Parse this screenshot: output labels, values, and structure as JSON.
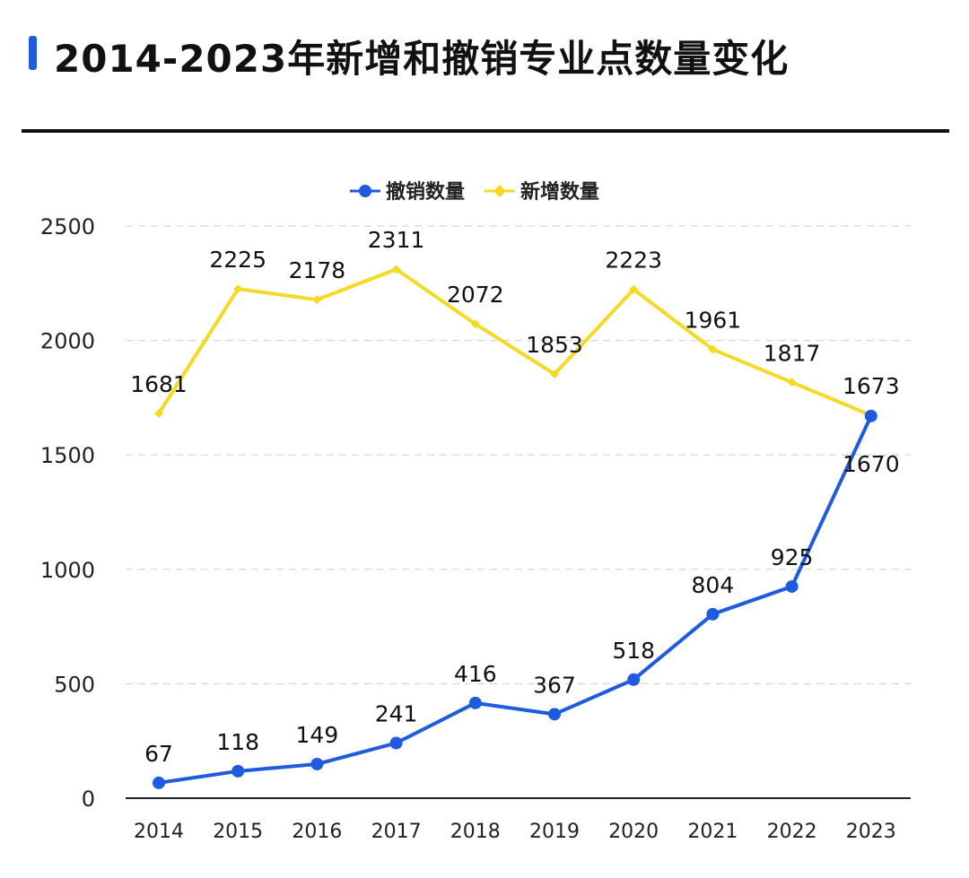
{
  "header": {
    "title": "2014-2023年新增和撤销专业点数量变化",
    "accent_color": "#1f5be0"
  },
  "chart_data": {
    "type": "line",
    "title": "2014-2023年新增和撤销专业点数量变化",
    "xlabel": "",
    "ylabel": "",
    "x": [
      "2014",
      "2015",
      "2016",
      "2017",
      "2018",
      "2019",
      "2020",
      "2021",
      "2022",
      "2023"
    ],
    "ylim": [
      0,
      2500
    ],
    "yticks": [
      0,
      500,
      1000,
      1500,
      2000,
      2500
    ],
    "grid": true,
    "legend_position": "top-center",
    "series": [
      {
        "name": "撤销数量",
        "color": "#1f5be0",
        "marker": "circle",
        "values": [
          67,
          118,
          149,
          241,
          416,
          367,
          518,
          804,
          925,
          1670
        ]
      },
      {
        "name": "新增数量",
        "color": "#f5d923",
        "marker": "diamond",
        "values": [
          1681,
          2225,
          2178,
          2311,
          2072,
          1853,
          2223,
          1961,
          1817,
          1673
        ]
      }
    ]
  }
}
